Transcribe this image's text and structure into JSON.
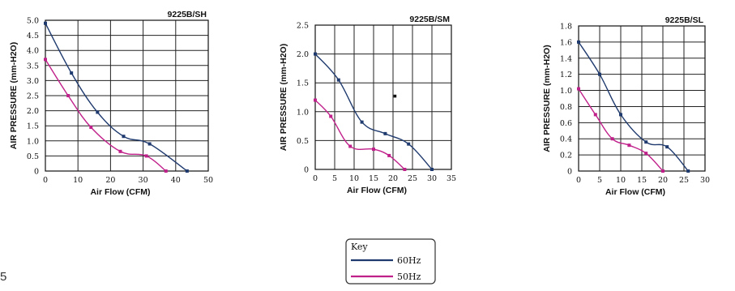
{
  "page_number": "5",
  "legend": {
    "title": "Key",
    "items": [
      {
        "label": "60Hz",
        "color": "#1f3a6e"
      },
      {
        "label": "50Hz",
        "color": "#c0208a"
      }
    ]
  },
  "chart_data": [
    {
      "type": "line",
      "title": "9225B/SH",
      "xlabel": "Air Flow (CFM)",
      "ylabel": "AIR PRESSURE (mm-H2O)",
      "xlim": [
        0,
        50
      ],
      "ylim": [
        0,
        5.0
      ],
      "xticks": [
        0,
        10,
        20,
        30,
        40,
        50
      ],
      "yticks": [
        0,
        0.5,
        1.0,
        1.5,
        2.0,
        2.5,
        3.0,
        3.5,
        4.0,
        4.5,
        5.0
      ],
      "ytick_labels": [
        "0",
        "0.5",
        "1.0",
        "1.5",
        "2.0",
        "2.5",
        "3.0",
        "3.5",
        "4.0",
        "4.5",
        "5.0"
      ],
      "grid": true,
      "series": [
        {
          "name": "60Hz",
          "x": [
            0,
            8,
            16,
            24,
            32,
            43.5
          ],
          "y": [
            4.9,
            3.25,
            1.95,
            1.15,
            0.9,
            0
          ]
        },
        {
          "name": "50Hz",
          "x": [
            0,
            7,
            14,
            23,
            31,
            37
          ],
          "y": [
            3.7,
            2.5,
            1.45,
            0.65,
            0.5,
            0
          ]
        }
      ]
    },
    {
      "type": "line",
      "title": "9225B/SM",
      "xlabel": "Air Flow (CFM)",
      "ylabel": "AIR PRESSURE (mm-H2O)",
      "xlim": [
        0,
        35
      ],
      "ylim": [
        0,
        2.5
      ],
      "xticks": [
        0,
        5,
        10,
        15,
        20,
        25,
        30,
        35
      ],
      "yticks": [
        0,
        0.5,
        1.0,
        1.5,
        2.0,
        2.5
      ],
      "ytick_labels": [
        "0",
        "0.5",
        "1.0",
        "1.5",
        "2.0",
        "2.5"
      ],
      "grid": true,
      "series": [
        {
          "name": "60Hz",
          "x": [
            0,
            6,
            12,
            18,
            24,
            30
          ],
          "y": [
            2.0,
            1.55,
            0.82,
            0.62,
            0.44,
            0
          ]
        },
        {
          "name": "50Hz",
          "x": [
            0,
            4,
            9,
            15,
            19,
            23
          ],
          "y": [
            1.2,
            0.92,
            0.4,
            0.35,
            0.24,
            0
          ]
        }
      ],
      "stray_point": {
        "x": 20.5,
        "y": 1.27
      }
    },
    {
      "type": "line",
      "title": "9225B/SL",
      "xlabel": "Air Flow (CFM)",
      "ylabel": "AIR PRESSURE (mm-H2O)",
      "xlim": [
        0,
        30
      ],
      "ylim": [
        0,
        1.8
      ],
      "xticks": [
        0,
        5,
        10,
        15,
        20,
        25,
        30
      ],
      "yticks": [
        0,
        0.2,
        0.4,
        0.6,
        0.8,
        1.0,
        1.2,
        1.4,
        1.6,
        1.8
      ],
      "ytick_labels": [
        "0",
        "0.2",
        "0.4",
        "0.6",
        "0.8",
        "1.0",
        "1.2",
        "1.4",
        "1.6",
        "1.8"
      ],
      "grid": true,
      "series": [
        {
          "name": "60Hz",
          "x": [
            0,
            5,
            10,
            16,
            21,
            26
          ],
          "y": [
            1.6,
            1.2,
            0.7,
            0.36,
            0.3,
            0
          ]
        },
        {
          "name": "50Hz",
          "x": [
            0,
            4,
            8,
            12,
            16,
            20
          ],
          "y": [
            1.02,
            0.7,
            0.4,
            0.32,
            0.22,
            0
          ]
        }
      ]
    }
  ]
}
